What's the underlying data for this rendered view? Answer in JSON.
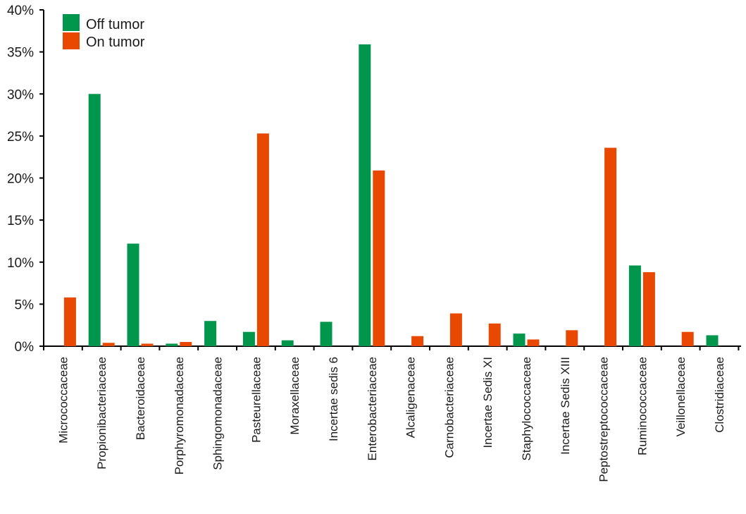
{
  "chart_data": {
    "type": "bar",
    "title": "",
    "xlabel": "",
    "ylabel": "",
    "ylim": [
      0,
      40
    ],
    "yticks": [
      "0%",
      "5%",
      "10%",
      "15%",
      "20%",
      "25%",
      "30%",
      "35%",
      "40%"
    ],
    "grid": false,
    "legend": "top-left",
    "categories": [
      "Micrococcaceae",
      "Propionibacteriaceae",
      "Bacteroidaceae",
      "Porphyromonadaceae",
      "Sphingomonadaceae",
      "Pasteurellaceae",
      "Moraxellaceae",
      "Incertae sedis 6",
      "Enterobacteriaceae",
      "Alcaligenaceae",
      "Carnobacteriaceae",
      "Incertae Sedis XI",
      "Staphylococcaceae",
      "Incertae Sedis XIII",
      "Peptostreptococcaceae",
      "Ruminococcaceae",
      "Veillonellaceae",
      "Clostridiaceae"
    ],
    "series": [
      {
        "name": "Off tumor",
        "color": "#00964b",
        "values": [
          0,
          30.0,
          12.2,
          0.3,
          3.0,
          1.7,
          0.7,
          2.9,
          35.9,
          0,
          0,
          0,
          1.5,
          0,
          0,
          9.6,
          0,
          1.3
        ]
      },
      {
        "name": "On tumor",
        "color": "#e84800",
        "values": [
          5.8,
          0.4,
          0.3,
          0.5,
          0,
          25.3,
          0,
          0,
          20.9,
          1.2,
          3.9,
          2.7,
          0.8,
          1.9,
          23.6,
          8.8,
          1.7,
          0
        ]
      }
    ]
  }
}
